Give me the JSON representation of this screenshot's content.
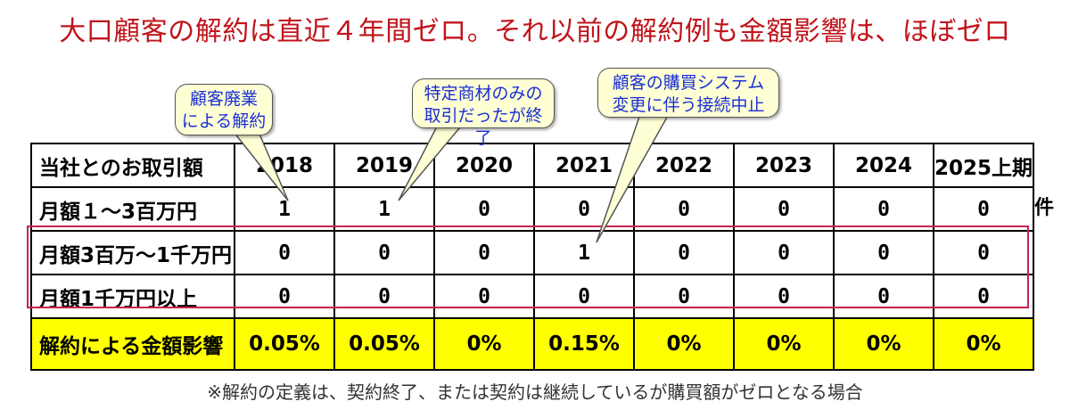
{
  "title": "大口顧客の解約は直近４年間ゼロ。それ以前の解約例も金額影響は、ほぼゼロ",
  "table": {
    "header_label": "当社とのお取引額",
    "years": [
      "2018",
      "2019",
      "2020",
      "2021",
      "2022",
      "2023",
      "2024",
      "2025上期"
    ],
    "rows": [
      {
        "label": "月額１～3百万円",
        "values": [
          "1",
          "1",
          "0",
          "0",
          "0",
          "0",
          "0",
          "0"
        ]
      },
      {
        "label": "月額3百万～1千万円",
        "values": [
          "0",
          "0",
          "0",
          "1",
          "0",
          "0",
          "0",
          "0"
        ]
      },
      {
        "label": "月額1千万円以上",
        "values": [
          "0",
          "0",
          "0",
          "0",
          "0",
          "0",
          "0",
          "0"
        ]
      }
    ],
    "impact": {
      "label": "解約による金額影響",
      "values": [
        "0.05%",
        "0.05%",
        "0%",
        "0.15%",
        "0%",
        "0%",
        "0%",
        "0%"
      ]
    },
    "unit": "件"
  },
  "callouts": [
    {
      "lines": [
        "顧客廃業",
        "による解約"
      ]
    },
    {
      "lines": [
        "特定商材のみの",
        "取引だったが終了"
      ]
    },
    {
      "lines": [
        "顧客の購買システム",
        "変更に伴う接続中止"
      ]
    }
  ],
  "footnote": "※解約の定義は、契約終了、または契約は継続しているが購買額がゼロとなる場合",
  "colors": {
    "title": "#c0141c",
    "impact_row_bg": "#ffff00",
    "highlight_border": "#c4264f",
    "callout_bg": "#ffffd6",
    "callout_text": "#1a2fd4"
  }
}
